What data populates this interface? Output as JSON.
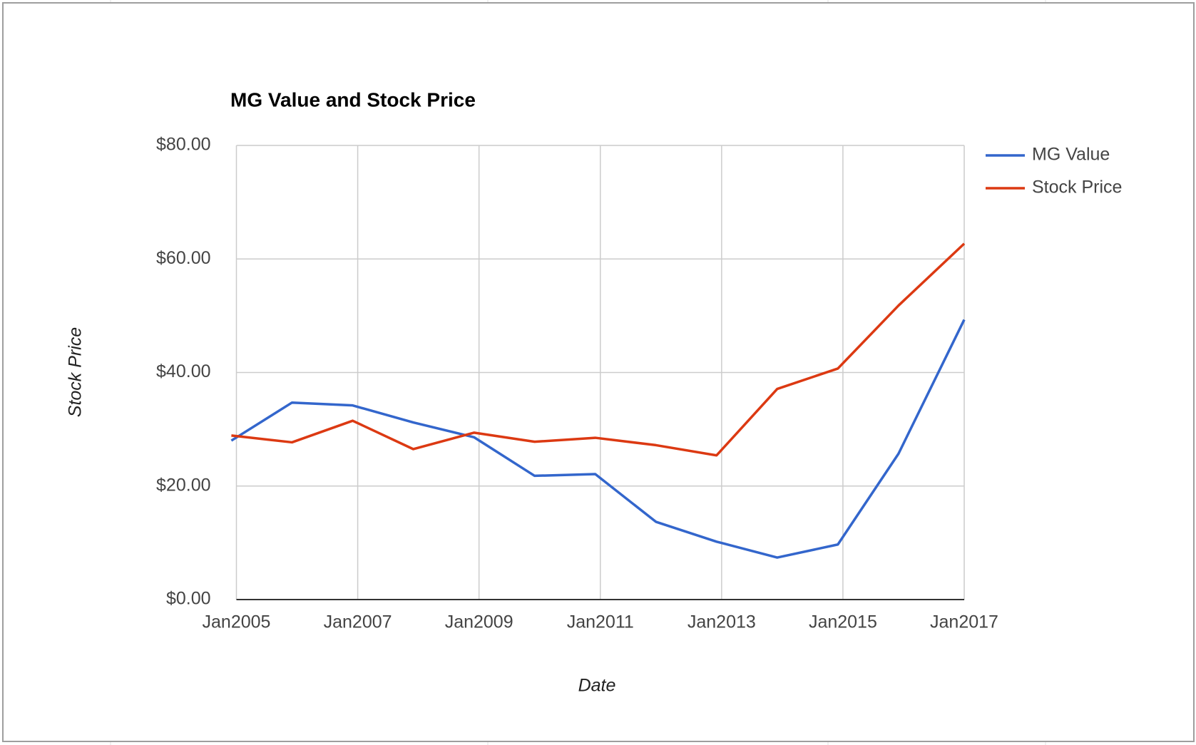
{
  "chart_data": {
    "type": "line",
    "title": "MG Value and Stock Price",
    "x_label": "Date",
    "y_label": "Stock Price",
    "x": [
      "2004-12",
      "2005-12",
      "2006-12",
      "2007-12",
      "2008-12",
      "2009-12",
      "2010-12",
      "2011-12",
      "2012-12",
      "2013-12",
      "2014-12",
      "2015-12",
      "2017-01"
    ],
    "series": [
      {
        "name": "MG Value",
        "color": "#3366cc",
        "values": [
          28.0,
          34.7,
          34.2,
          31.2,
          28.6,
          21.8,
          22.1,
          13.7,
          10.2,
          7.4,
          9.7,
          25.7,
          49.3
        ]
      },
      {
        "name": "Stock Price",
        "color": "#dc3912",
        "values": [
          28.9,
          27.7,
          31.5,
          26.5,
          29.4,
          27.8,
          28.5,
          27.2,
          25.4,
          37.1,
          40.7,
          51.8,
          62.7
        ]
      }
    ],
    "xlim": [
      "2005-01",
      "2017-01"
    ],
    "xticks": [
      {
        "value": "2005-01",
        "label": "Jan2005"
      },
      {
        "value": "2007-01",
        "label": "Jan2007"
      },
      {
        "value": "2009-01",
        "label": "Jan2009"
      },
      {
        "value": "2011-01",
        "label": "Jan2011"
      },
      {
        "value": "2013-01",
        "label": "Jan2013"
      },
      {
        "value": "2015-01",
        "label": "Jan2015"
      },
      {
        "value": "2017-01",
        "label": "Jan2017"
      }
    ],
    "ylim": [
      0,
      80
    ],
    "yticks": [
      {
        "value": 0,
        "label": "$0.00"
      },
      {
        "value": 20,
        "label": "$20.00"
      },
      {
        "value": 40,
        "label": "$40.00"
      },
      {
        "value": 60,
        "label": "$60.00"
      },
      {
        "value": 80,
        "label": "$80.00"
      }
    ],
    "grid": true,
    "legend": "right"
  }
}
